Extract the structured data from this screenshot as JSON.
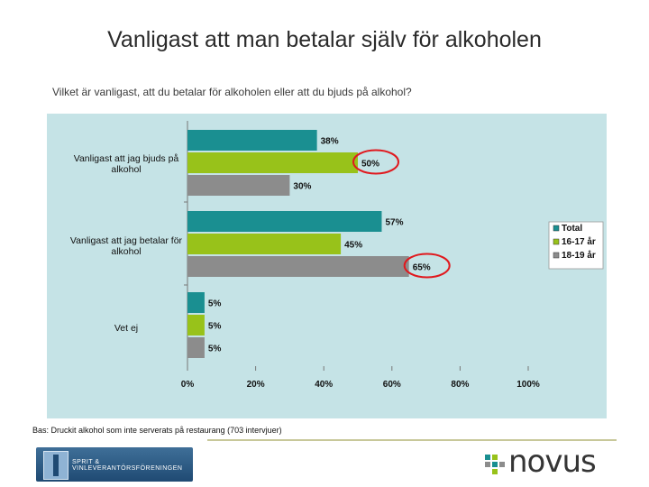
{
  "title": "Vanligast att man betalar själv för alkoholen",
  "question": "Vilket är vanligast, att du betalar för alkoholen eller att du bjuds på alkohol?",
  "footnote": "Bas: Druckit alkohol som inte serverats på restaurang (703 intervjuer)",
  "logos": {
    "left_text": "SPRIT & VINLEVERANTÖRSFÖRENINGEN",
    "right_text": "novus"
  },
  "colors": {
    "background": "#c5e3e6",
    "total": "#1a8f91",
    "age_16_17": "#98c21a",
    "age_18_19": "#8c8c8c",
    "highlight_circle": "#e0191e"
  },
  "chart_data": {
    "type": "bar",
    "orientation": "horizontal",
    "categories": [
      "Vanligast att jag bjuds på alkohol",
      "Vanligast att jag betalar för alkohol",
      "Vet ej"
    ],
    "series": [
      {
        "name": "Total",
        "values": [
          38,
          57,
          5
        ],
        "labels": [
          "38%",
          "57%",
          "5%"
        ]
      },
      {
        "name": "16-17 år",
        "values": [
          50,
          45,
          5
        ],
        "labels": [
          "50%",
          "45%",
          "5%"
        ]
      },
      {
        "name": "18-19 år",
        "values": [
          30,
          65,
          5
        ],
        "labels": [
          "30%",
          "65%",
          "5%"
        ]
      }
    ],
    "xlim": [
      0,
      100
    ],
    "xticks": [
      "0%",
      "20%",
      "40%",
      "60%",
      "80%",
      "100%"
    ],
    "highlighted": [
      "16-17 år / Vanligast att jag bjuds på alkohol",
      "18-19 år / Vanligast att jag betalar för alkohol"
    ],
    "legend_position": "right",
    "grid": false
  }
}
